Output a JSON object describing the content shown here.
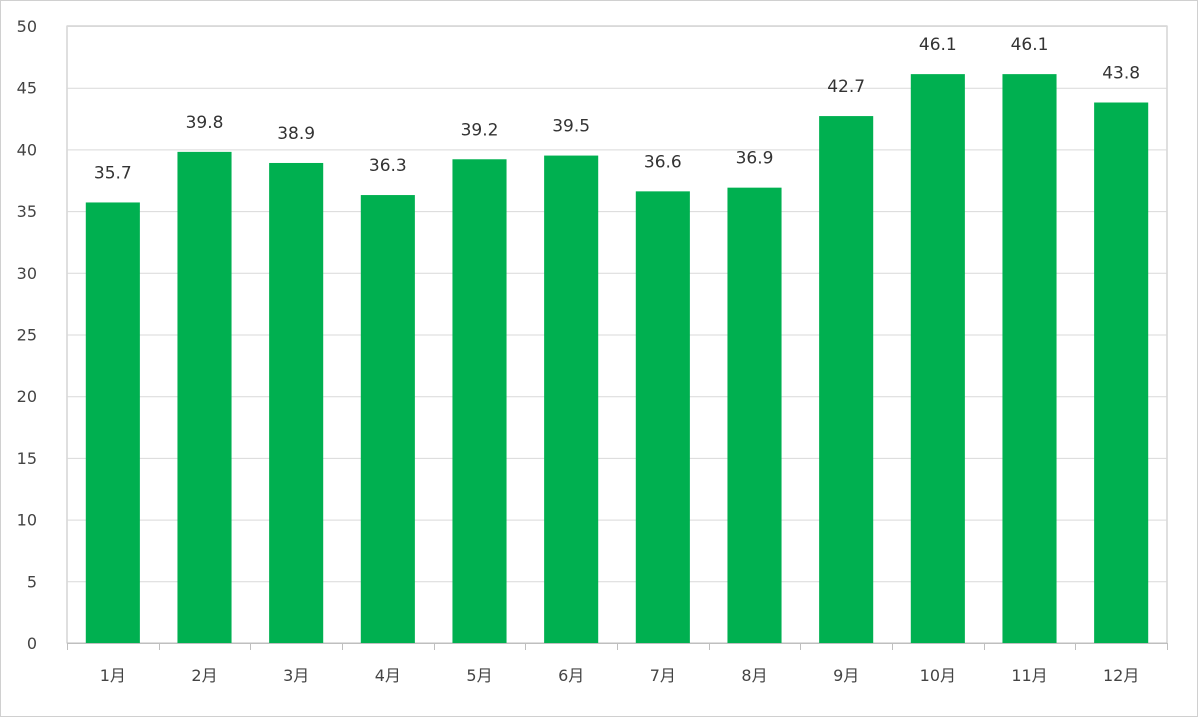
{
  "chart_data": {
    "type": "bar",
    "categories": [
      "1月",
      "2月",
      "3月",
      "4月",
      "5月",
      "6月",
      "7月",
      "8月",
      "9月",
      "10月",
      "11月",
      "12月"
    ],
    "values": [
      35.7,
      39.8,
      38.9,
      36.3,
      39.2,
      39.5,
      36.6,
      36.9,
      42.7,
      46.1,
      46.1,
      43.8
    ],
    "value_labels": [
      "35.7",
      "39.8",
      "38.9",
      "36.3",
      "39.2",
      "39.5",
      "36.6",
      "36.9",
      "42.7",
      "46.1",
      "46.1",
      "43.8"
    ],
    "yticks": [
      "0",
      "5",
      "10",
      "15",
      "20",
      "25",
      "30",
      "35",
      "40",
      "45",
      "50"
    ],
    "ylim": [
      0,
      50
    ],
    "grid": true,
    "legend": "none",
    "bar_color": "#00b050",
    "gridline_color": "#d9d9d9",
    "axis_color": "#bfbfbf"
  }
}
